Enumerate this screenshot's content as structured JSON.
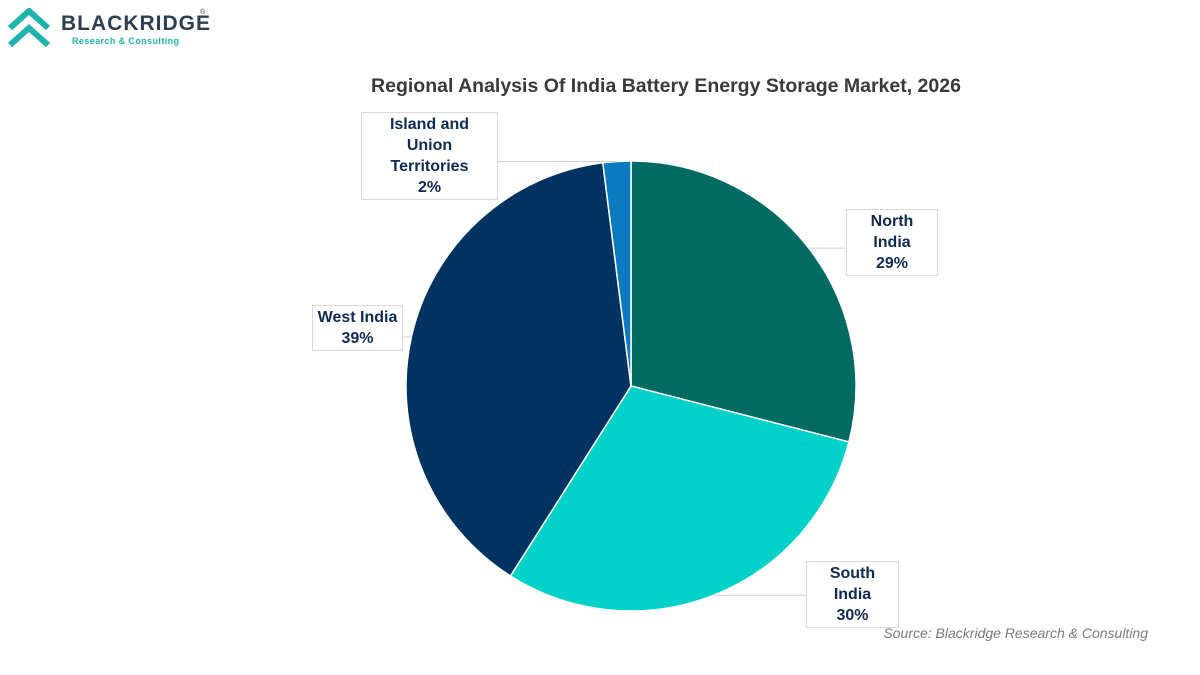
{
  "brand": {
    "name": "BLACKRIDGE",
    "registered_mark": "®",
    "tagline": "Research & Consulting",
    "colors": {
      "dark": "#2c3e50",
      "teal": "#1fb3ac"
    }
  },
  "source_note": "Source: Blackridge Research & Consulting",
  "chart_data": {
    "type": "pie",
    "title": "Regional Analysis Of India Battery Energy Storage Market, 2026",
    "slices": [
      {
        "label": "North India",
        "value": 29,
        "display": "29%",
        "color": "#006a63"
      },
      {
        "label": "South India",
        "value": 30,
        "display": "30%",
        "color": "#00d2ca"
      },
      {
        "label": "West India",
        "value": 39,
        "display": "39%",
        "color": "#003262"
      },
      {
        "label": "Island and Union Territories",
        "value": 2,
        "display": "2%",
        "color": "#0a7bc0"
      }
    ],
    "start_angle_deg": 0,
    "direction": "clockwise",
    "legend": "none",
    "data_labels": "outside-callouts"
  }
}
